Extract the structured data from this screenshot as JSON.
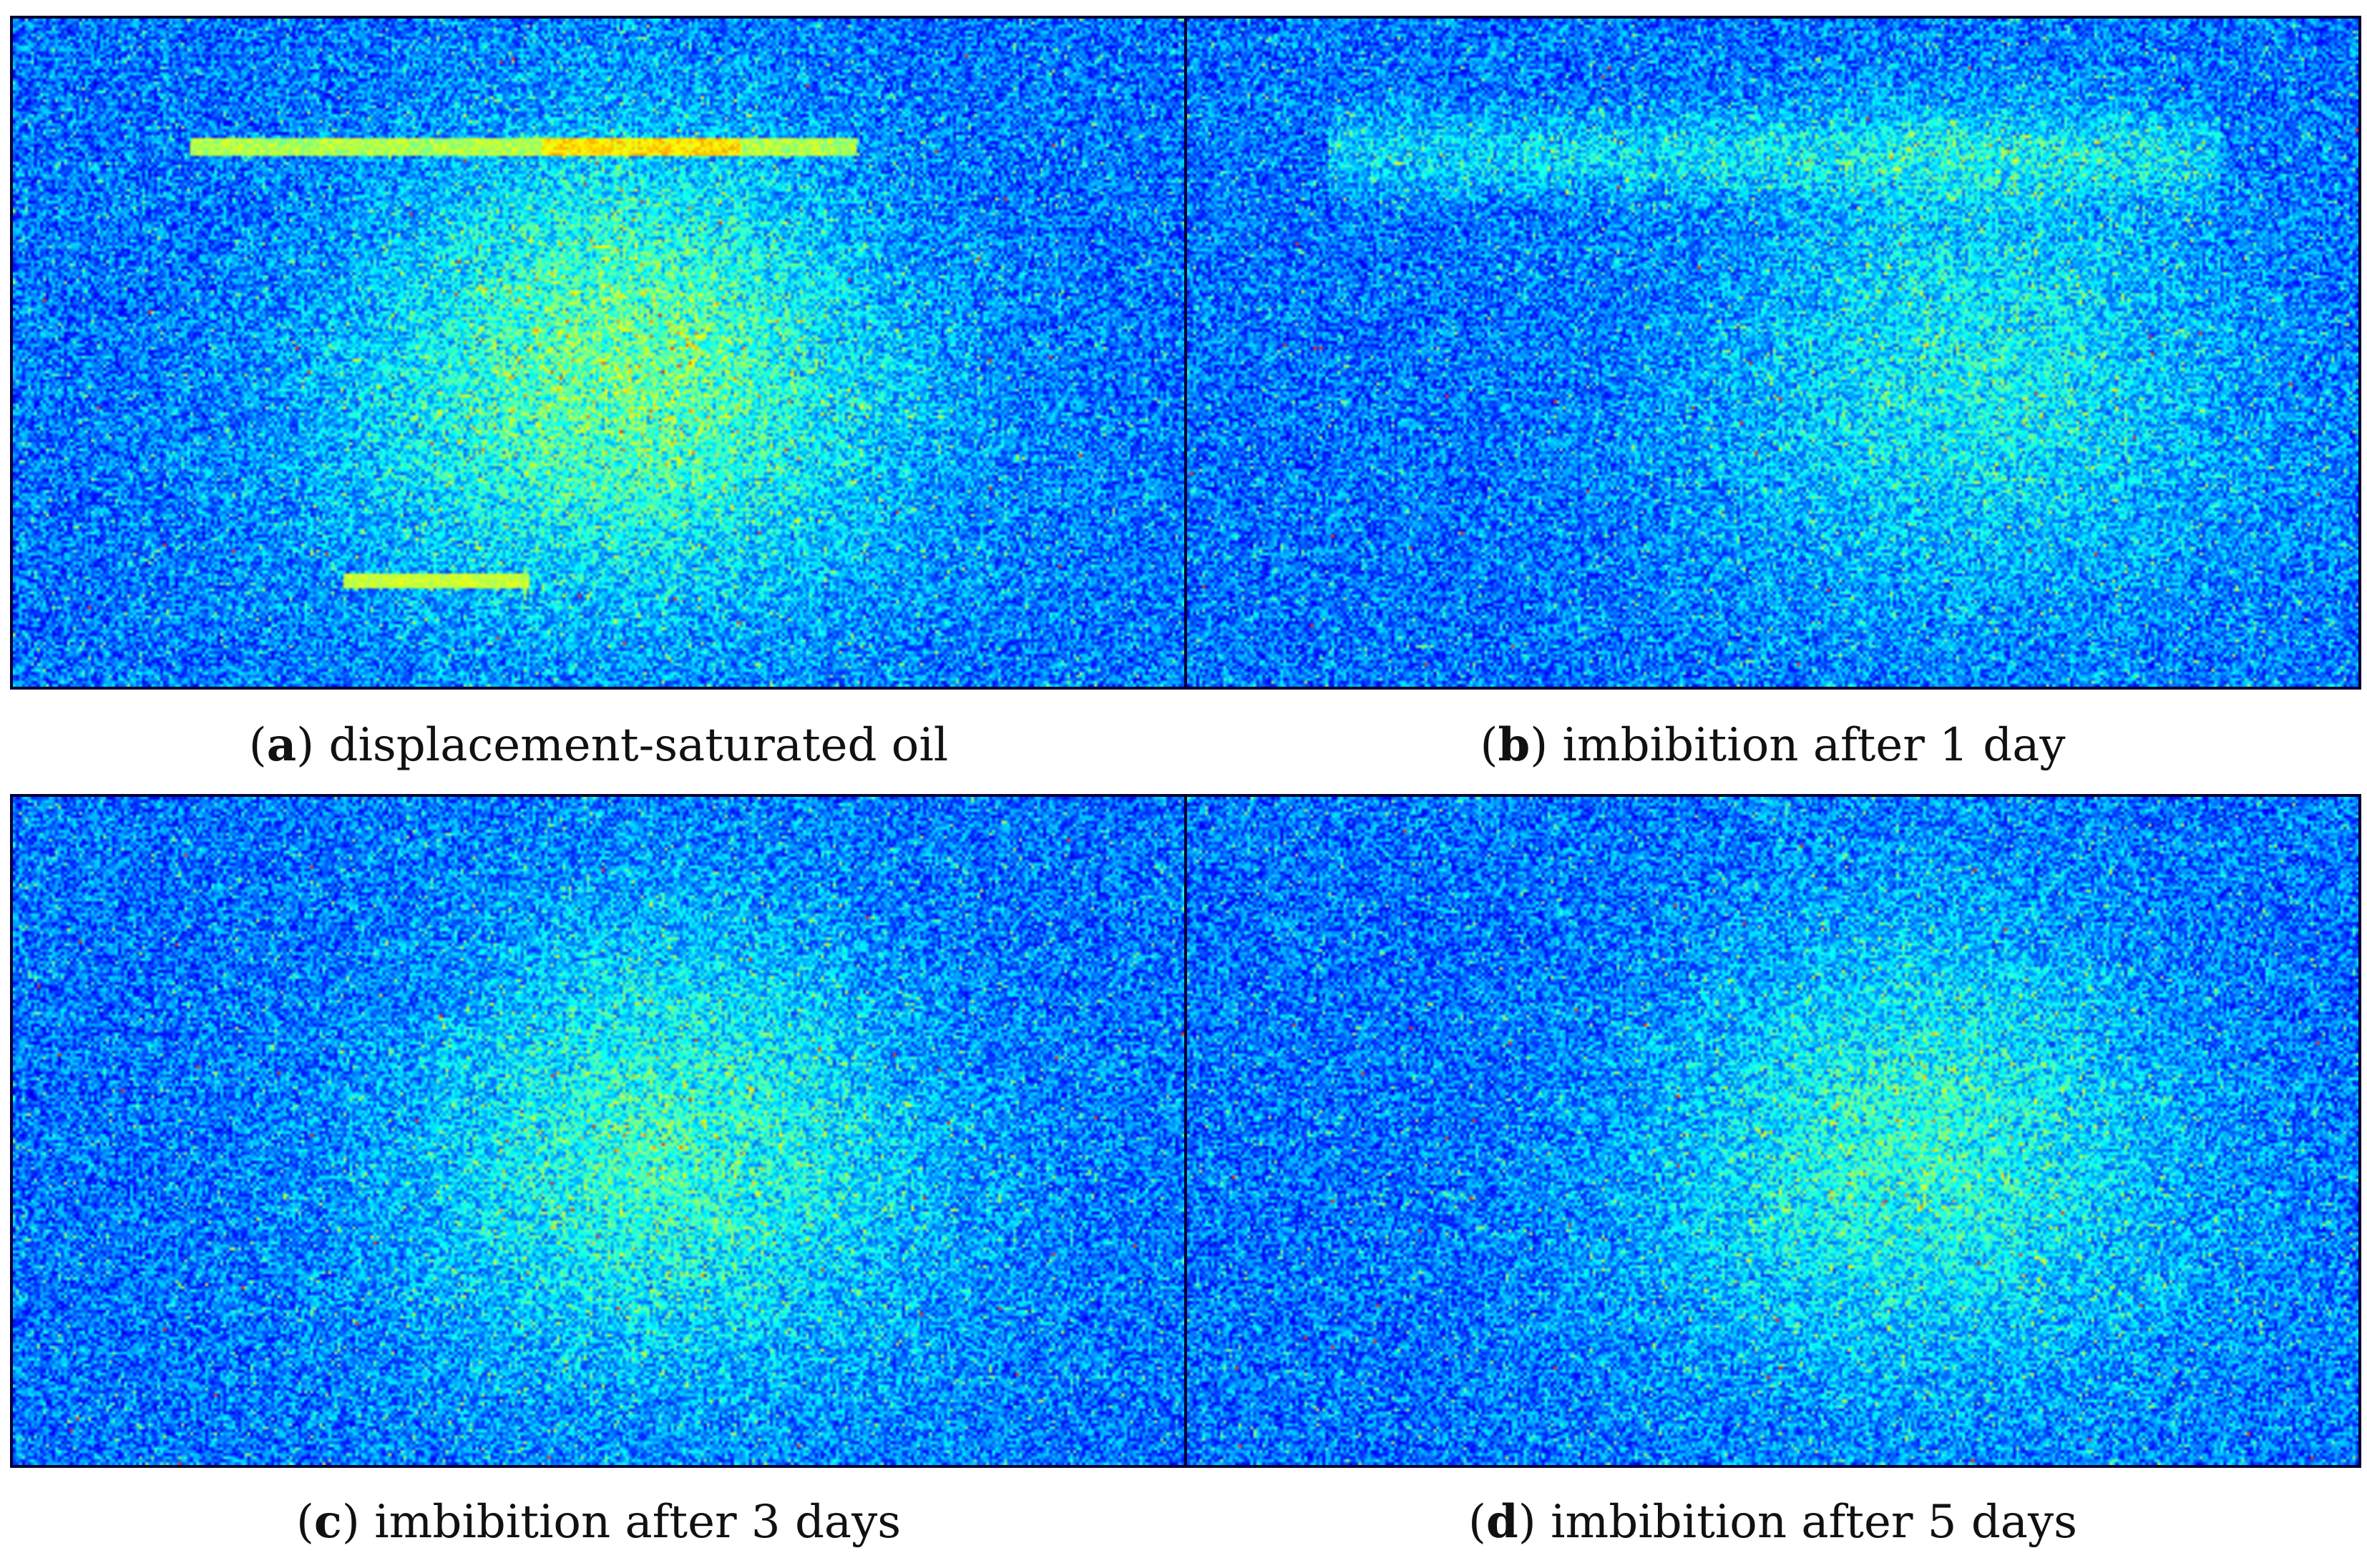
{
  "figure": {
    "panels": [
      {
        "id": "a",
        "letter": "a",
        "caption": "displacement-saturated oil",
        "signal_level": 1.0,
        "features": [
          "upper-streak",
          "lower-streak",
          "bright-core"
        ]
      },
      {
        "id": "b",
        "letter": "b",
        "caption": "imbibition after 1 day",
        "signal_level": 0.55,
        "features": [
          "faint-upper-band",
          "diffuse-core"
        ]
      },
      {
        "id": "c",
        "letter": "c",
        "caption": "imbibition after 3 days",
        "signal_level": 0.75,
        "features": [
          "diffuse-core"
        ]
      },
      {
        "id": "d",
        "letter": "d",
        "caption": "imbibition after 5 days",
        "signal_level": 0.7,
        "features": [
          "diffuse-core"
        ]
      }
    ],
    "colormap": [
      "#00008f",
      "#0000ff",
      "#0080ff",
      "#00ffff",
      "#80ff80",
      "#ffff00",
      "#ff8000",
      "#ff0000"
    ]
  }
}
